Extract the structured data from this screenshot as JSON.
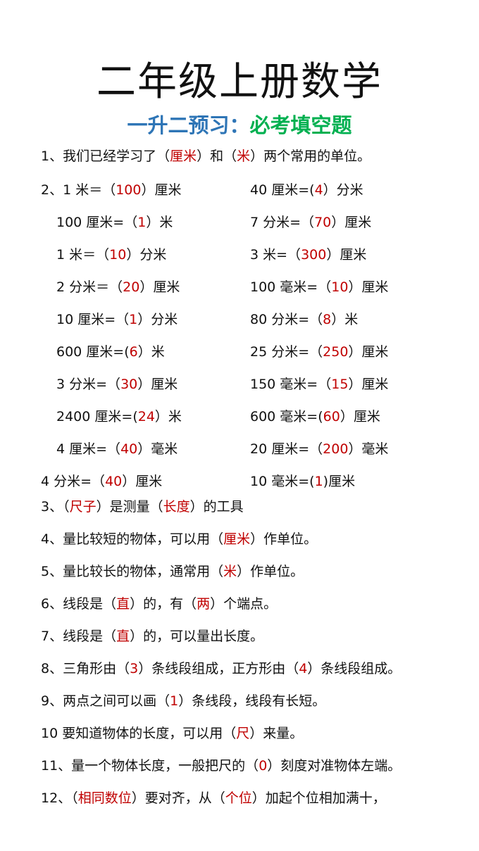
{
  "title": "二年级上册数学",
  "subtitle": {
    "part1": "一升二预习：",
    "part2": "必考填空题"
  },
  "colors": {
    "answer": "#c00000",
    "subtitle_blue": "#2e75b6",
    "subtitle_green": "#00b050",
    "text": "#111111"
  },
  "lines": [
    [
      [
        "1、我们已经学习了（",
        0
      ],
      [
        "厘米",
        1
      ],
      [
        "）和（",
        0
      ],
      [
        "米",
        1
      ],
      [
        "）两个常用的单位。",
        0
      ]
    ],
    [
      [
        "2、1 米＝（",
        0
      ],
      [
        "100",
        1
      ],
      [
        "）厘米",
        0
      ]
    ],
    [
      [
        "40 厘米=(",
        0
      ],
      [
        "4",
        1
      ],
      [
        "）分米",
        0
      ]
    ],
    [
      [
        "100 厘米=（",
        0
      ],
      [
        "1",
        1
      ],
      [
        "）米",
        0
      ]
    ],
    [
      [
        "7 分米=（",
        0
      ],
      [
        "70",
        1
      ],
      [
        "）厘米",
        0
      ]
    ],
    [
      [
        "1 米＝（",
        0
      ],
      [
        "10",
        1
      ],
      [
        "）分米",
        0
      ]
    ],
    [
      [
        "3 米=（",
        0
      ],
      [
        "300",
        1
      ],
      [
        "）厘米",
        0
      ]
    ],
    [
      [
        "2 分米＝（",
        0
      ],
      [
        "20",
        1
      ],
      [
        "）厘米",
        0
      ]
    ],
    [
      [
        "100 毫米=（",
        0
      ],
      [
        "10",
        1
      ],
      [
        "）厘米",
        0
      ]
    ],
    [
      [
        "10 厘米=（",
        0
      ],
      [
        "1",
        1
      ],
      [
        "）分米",
        0
      ]
    ],
    [
      [
        "80 分米=（",
        0
      ],
      [
        "8",
        1
      ],
      [
        "）米",
        0
      ]
    ],
    [
      [
        "600 厘米=(",
        0
      ],
      [
        "6",
        1
      ],
      [
        "）米",
        0
      ]
    ],
    [
      [
        "25 分米=（",
        0
      ],
      [
        "250",
        1
      ],
      [
        "）厘米",
        0
      ]
    ],
    [
      [
        "3 分米=（",
        0
      ],
      [
        "30",
        1
      ],
      [
        "）厘米",
        0
      ]
    ],
    [
      [
        "150 毫米=（",
        0
      ],
      [
        "15",
        1
      ],
      [
        "）厘米",
        0
      ]
    ],
    [
      [
        "2400 厘米=(",
        0
      ],
      [
        "24",
        1
      ],
      [
        "）米",
        0
      ]
    ],
    [
      [
        "600 毫米=(",
        0
      ],
      [
        "60",
        1
      ],
      [
        "）厘米",
        0
      ]
    ],
    [
      [
        "4 厘米=（",
        0
      ],
      [
        "40",
        1
      ],
      [
        "）毫米",
        0
      ]
    ],
    [
      [
        "20 厘米=（",
        0
      ],
      [
        "200",
        1
      ],
      [
        "）毫米",
        0
      ]
    ],
    [
      [
        "4 分米=（",
        0
      ],
      [
        "40",
        1
      ],
      [
        "）厘米",
        0
      ]
    ],
    [
      [
        "10 毫米=(",
        0
      ],
      [
        "1",
        1
      ],
      [
        ")厘米",
        0
      ]
    ],
    [
      [
        "3、（",
        0
      ],
      [
        "尺子",
        1
      ],
      [
        "）是测量（",
        0
      ],
      [
        "长度",
        1
      ],
      [
        "）的工具",
        0
      ]
    ],
    [
      [
        "4、量比较短的物体，可以用（",
        0
      ],
      [
        "厘米",
        1
      ],
      [
        "）作单位。",
        0
      ]
    ],
    [
      [
        "5、量比较长的物体，通常用（",
        0
      ],
      [
        "米",
        1
      ],
      [
        "）作单位。",
        0
      ]
    ],
    [
      [
        "6、线段是（",
        0
      ],
      [
        "直",
        1
      ],
      [
        "）的，有（",
        0
      ],
      [
        "两",
        1
      ],
      [
        "）个端点。",
        0
      ]
    ],
    [
      [
        "7、线段是（",
        0
      ],
      [
        "直",
        1
      ],
      [
        "）的，可以量出长度。",
        0
      ]
    ],
    [
      [
        "8、三角形由（",
        0
      ],
      [
        "3",
        1
      ],
      [
        "）条线段组成，正方形由（",
        0
      ],
      [
        "4",
        1
      ],
      [
        "）条线段组成。",
        0
      ]
    ],
    [
      [
        "9、两点之间可以画（",
        0
      ],
      [
        "1",
        1
      ],
      [
        "）条线段，线段有长短。",
        0
      ]
    ],
    [
      [
        "10 要知道物体的长度，可以用（",
        0
      ],
      [
        "尺",
        1
      ],
      [
        "）来量。",
        0
      ]
    ],
    [
      [
        "11、量一个物体长度，一般把尺的（",
        0
      ],
      [
        "0",
        1
      ],
      [
        "）刻度对准物体左端。",
        0
      ]
    ],
    [
      [
        "12、（",
        0
      ],
      [
        "相同数位",
        1
      ],
      [
        "）要对齐，从（",
        0
      ],
      [
        "个位",
        1
      ],
      [
        "）加起个位相加满十，",
        0
      ]
    ]
  ]
}
